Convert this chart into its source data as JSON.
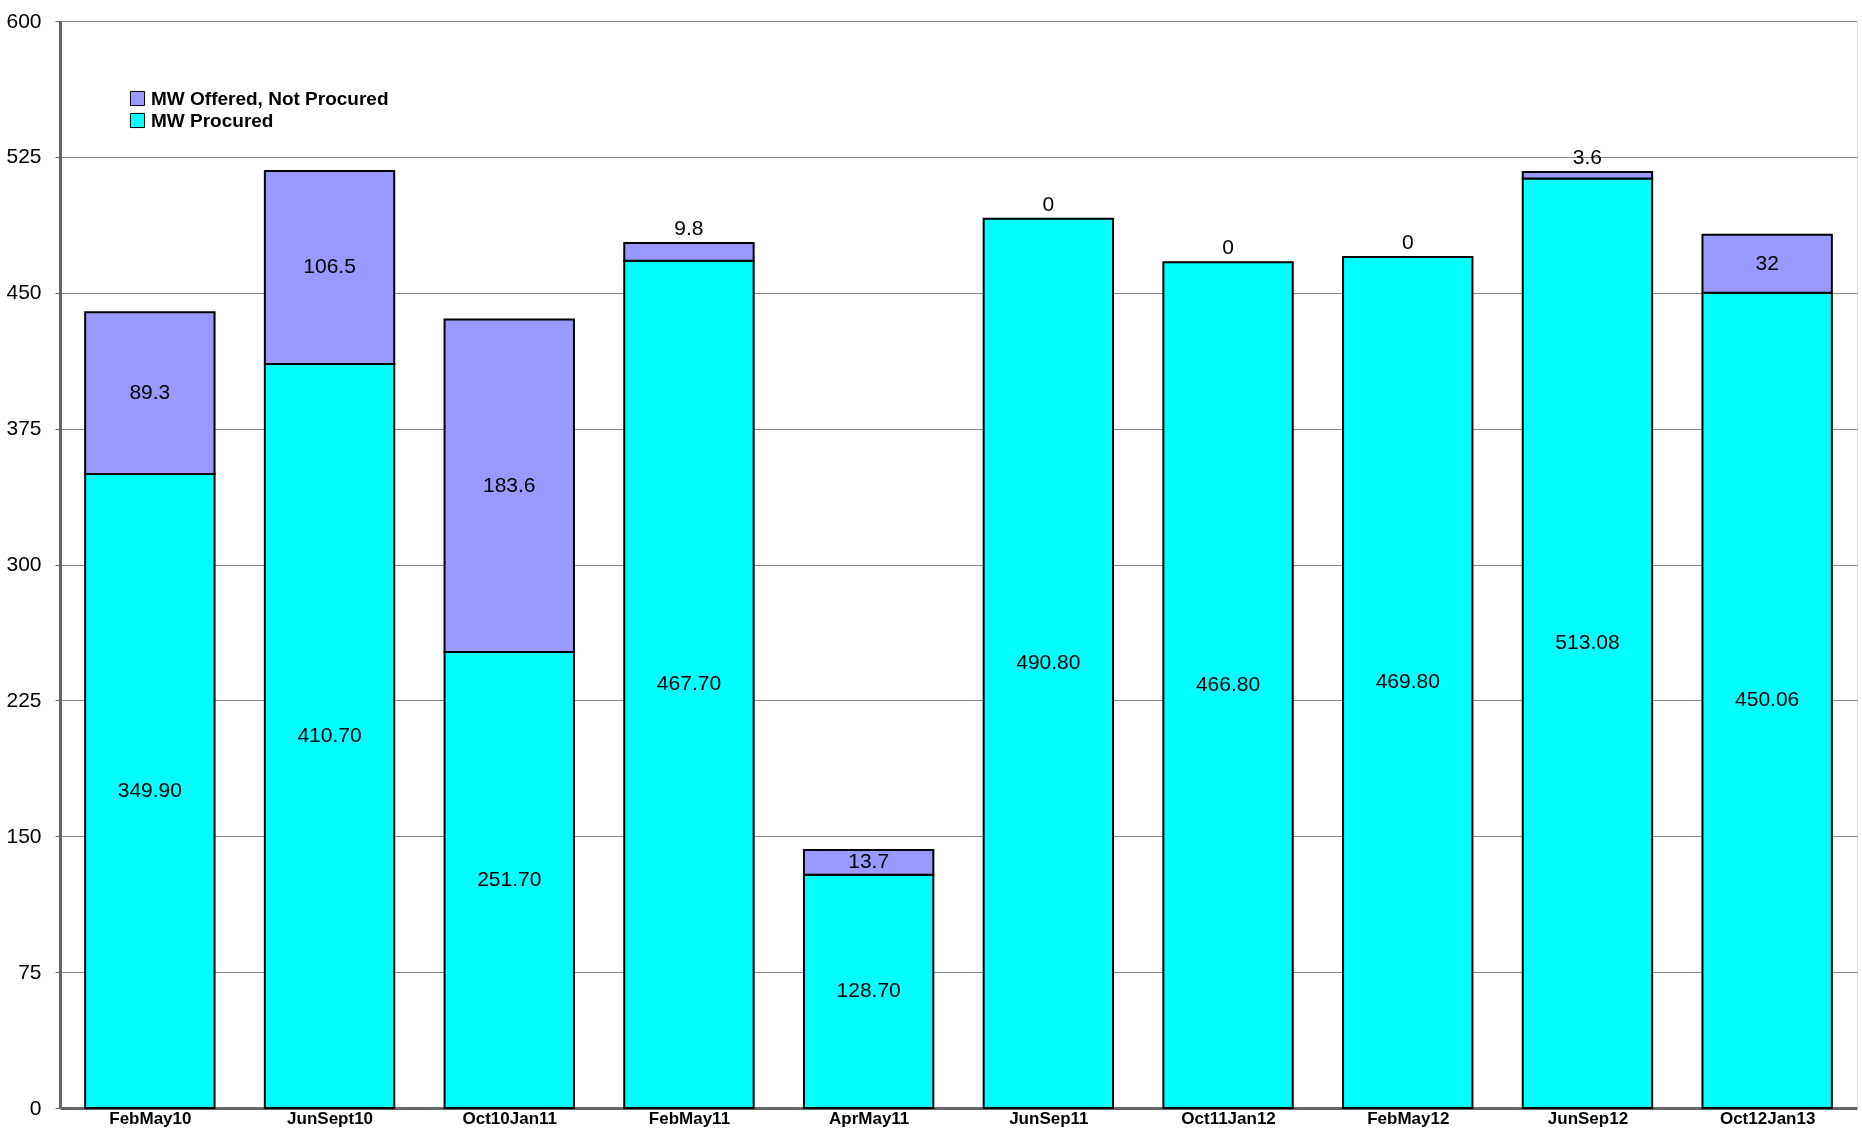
{
  "chart_data": {
    "type": "bar",
    "stacked": true,
    "categories": [
      "FebMay10",
      "JunSept10",
      "Oct10Jan11",
      "FebMay11",
      "AprMay11",
      "JunSep11",
      "Oct11Jan12",
      "FebMay12",
      "JunSep12",
      "Oct12Jan13"
    ],
    "series": [
      {
        "name": "MW Procured",
        "color": "#00ffff",
        "values": [
          349.9,
          410.7,
          251.7,
          467.7,
          128.7,
          490.8,
          466.8,
          469.8,
          513.08,
          450.06
        ],
        "value_labels": [
          "349.90",
          "410.70",
          "251.70",
          "467.70",
          "128.70",
          "490.80",
          "466.80",
          "469.80",
          "513.08",
          "450.06"
        ]
      },
      {
        "name": "MW Offered, Not Procured",
        "color": "#9999ff",
        "values": [
          89.3,
          106.5,
          183.6,
          9.8,
          13.7,
          0,
          0,
          0,
          3.6,
          32
        ],
        "value_labels": [
          "89.3",
          "106.5",
          "183.6",
          "9.8",
          "13.7",
          "0",
          "0",
          "0",
          "3.6",
          "32"
        ]
      }
    ],
    "ylim": [
      0,
      600
    ],
    "yticks": [
      0,
      75,
      150,
      225,
      300,
      375,
      450,
      525,
      600
    ],
    "grid": "y",
    "legend": "top left"
  }
}
